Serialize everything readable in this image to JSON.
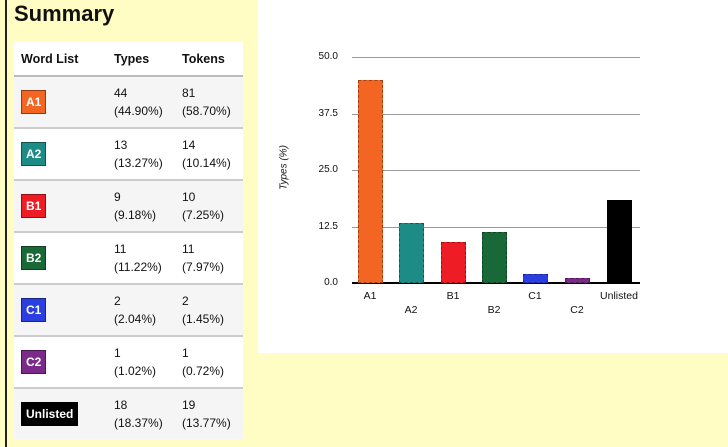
{
  "page": {
    "title": "Summary"
  },
  "table": {
    "headers": [
      "Word List",
      "Types",
      "Tokens"
    ],
    "rows": [
      {
        "level": "A1",
        "color": "#f26522",
        "types": "44",
        "types_pct": "(44.90%)",
        "tokens": "81",
        "tokens_pct": "(58.70%)"
      },
      {
        "level": "A2",
        "color": "#1e8c86",
        "types": "13",
        "types_pct": "(13.27%)",
        "tokens": "14",
        "tokens_pct": "(10.14%)"
      },
      {
        "level": "B1",
        "color": "#ee1c24",
        "types": "9",
        "types_pct": "(9.18%)",
        "tokens": "10",
        "tokens_pct": "(7.25%)"
      },
      {
        "level": "B2",
        "color": "#196838",
        "types": "11",
        "types_pct": "(11.22%)",
        "tokens": "11",
        "tokens_pct": "(7.97%)"
      },
      {
        "level": "C1",
        "color": "#2b3ee0",
        "types": "2",
        "types_pct": "(2.04%)",
        "tokens": "2",
        "tokens_pct": "(1.45%)"
      },
      {
        "level": "C2",
        "color": "#7b2a8a",
        "types": "1",
        "types_pct": "(1.02%)",
        "tokens": "1",
        "tokens_pct": "(0.72%)"
      },
      {
        "level": "Unlisted",
        "color": "#000000",
        "types": "18",
        "types_pct": "(18.37%)",
        "tokens": "19",
        "tokens_pct": "(13.77%)"
      }
    ]
  },
  "chart_data": {
    "type": "bar",
    "title": "",
    "xlabel": "",
    "ylabel": "Types (%)",
    "categories": [
      "A1",
      "A2",
      "B1",
      "B2",
      "C1",
      "C2",
      "Unlisted"
    ],
    "values": [
      44.9,
      13.27,
      9.18,
      11.22,
      2.04,
      1.02,
      18.37
    ],
    "colors": [
      "#f26522",
      "#1e8c86",
      "#ee1c24",
      "#196838",
      "#2b3ee0",
      "#7b2a8a",
      "#000000"
    ],
    "ylim": [
      0,
      50
    ],
    "yticks": [
      "0.0",
      "12.5",
      "25.0",
      "37.5",
      "50.0"
    ],
    "grid": true,
    "legend": "none"
  }
}
